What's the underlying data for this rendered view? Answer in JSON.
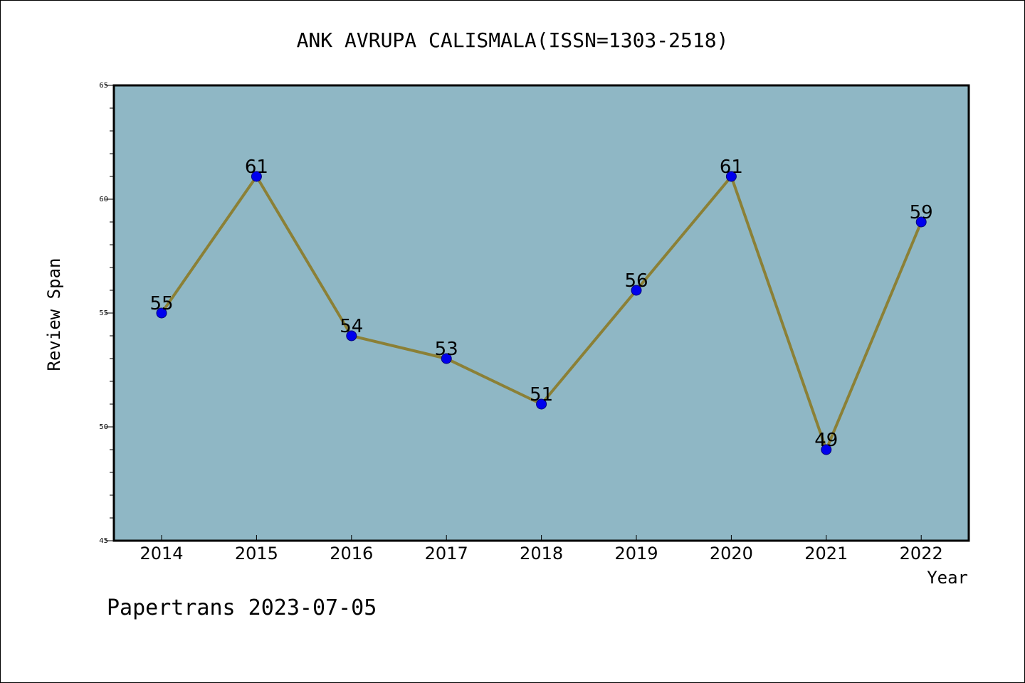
{
  "chart_data": {
    "type": "line",
    "title": "ANK AVRUPA CALISMALA(ISSN=1303-2518)",
    "xlabel": "Year",
    "ylabel": "Review Span",
    "categories": [
      "2014",
      "2015",
      "2016",
      "2017",
      "2018",
      "2019",
      "2020",
      "2021",
      "2022"
    ],
    "series": [
      {
        "values": [
          55,
          61,
          54,
          53,
          51,
          56,
          61,
          49,
          59
        ]
      }
    ],
    "data_labels": [
      "55",
      "61",
      "54",
      "53",
      "51",
      "56",
      "61",
      "49",
      "59"
    ],
    "ylim": [
      45,
      65
    ],
    "yticks": [
      "45",
      "50",
      "55",
      "60",
      "65"
    ],
    "grid": false,
    "legend": "none",
    "colors": {
      "plot_background": "#8fb7c5",
      "line": "#8b8036",
      "marker": "#0000ee",
      "marker_edge": "#00007a"
    }
  },
  "footer": {
    "text": "Papertrans 2023-07-05"
  }
}
